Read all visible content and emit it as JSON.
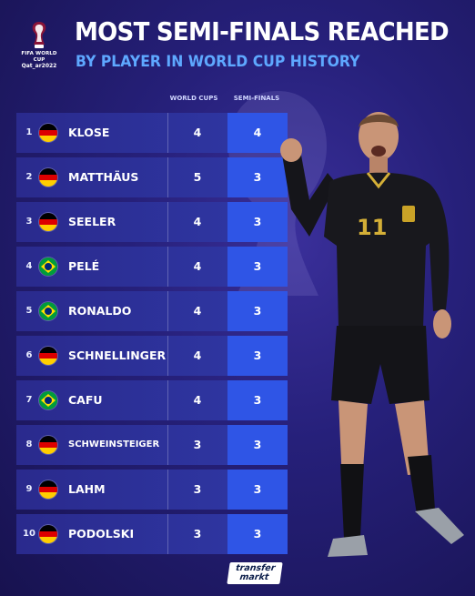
{
  "logo": {
    "line1": "FIFA WORLD CUP",
    "line2": "Qat_ar2022"
  },
  "title": "MOST SEMI-FINALS REACHED",
  "subtitle": "BY PLAYER IN WORLD CUP HISTORY",
  "columns": {
    "world_cups": "WORLD CUPS",
    "semi_finals": "SEMI-FINALS"
  },
  "rows": [
    {
      "rank": "1",
      "flag": "germany",
      "name": "KLOSE",
      "world_cups": "4",
      "semi_finals": "4"
    },
    {
      "rank": "2",
      "flag": "germany",
      "name": "MATTHÄUS",
      "world_cups": "5",
      "semi_finals": "3"
    },
    {
      "rank": "3",
      "flag": "germany",
      "name": "SEELER",
      "world_cups": "4",
      "semi_finals": "3"
    },
    {
      "rank": "4",
      "flag": "brazil",
      "name": "PELÉ",
      "world_cups": "4",
      "semi_finals": "3"
    },
    {
      "rank": "5",
      "flag": "brazil",
      "name": "RONALDO",
      "world_cups": "4",
      "semi_finals": "3"
    },
    {
      "rank": "6",
      "flag": "germany",
      "name": "SCHNELLINGER",
      "world_cups": "4",
      "semi_finals": "3"
    },
    {
      "rank": "7",
      "flag": "brazil",
      "name": "CAFU",
      "world_cups": "4",
      "semi_finals": "3"
    },
    {
      "rank": "8",
      "flag": "germany",
      "name": "SCHWEINSTEIGER",
      "world_cups": "3",
      "semi_finals": "3"
    },
    {
      "rank": "9",
      "flag": "germany",
      "name": "LAHM",
      "world_cups": "3",
      "semi_finals": "3"
    },
    {
      "rank": "10",
      "flag": "germany",
      "name": "PODOLSKI",
      "world_cups": "3",
      "semi_finals": "3"
    }
  ],
  "player": {
    "shirt_number": "11"
  },
  "footer": {
    "brand_line1": "transfer",
    "brand_line2": "markt"
  },
  "colors": {
    "background": "#26207a",
    "semi_final_cell": "#2f55e6",
    "row_bg": "#2a2a8d",
    "subtitle": "#5ea8ff"
  }
}
